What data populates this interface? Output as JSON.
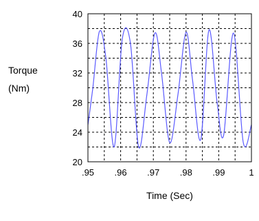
{
  "chart_data": {
    "type": "line",
    "title": "",
    "xlabel": "Time (Sec)",
    "ylabel": [
      "Torque",
      "(Nm)"
    ],
    "xlim": [
      0.95,
      1.0
    ],
    "ylim": [
      20,
      40
    ],
    "x_ticks": [
      0.95,
      0.96,
      0.97,
      0.98,
      0.99,
      1.0
    ],
    "x_tick_labels": [
      ".95",
      ".96",
      ".97",
      ".98",
      ".99",
      "1"
    ],
    "y_ticks": [
      20,
      24,
      28,
      32,
      36,
      40
    ],
    "y_tick_labels": [
      "20",
      "24",
      "28",
      "32",
      "36",
      "40"
    ],
    "grid": true,
    "grid_style": "dashed",
    "frame_color": "#000000",
    "grid_color": "#000000",
    "series": [
      {
        "color": "#5a5aff",
        "x": [
          0.95,
          0.9515,
          0.9535,
          0.9555,
          0.958,
          0.9605,
          0.963,
          0.9655,
          0.968,
          0.9705,
          0.9725,
          0.975,
          0.9775,
          0.98,
          0.982,
          0.9845,
          0.987,
          0.9895,
          0.9915,
          0.9945,
          0.9975,
          1.0
        ],
        "values": [
          25.0,
          30.0,
          37.6,
          34.0,
          22.0,
          36.6,
          36.0,
          22.0,
          29.0,
          37.4,
          32.0,
          22.6,
          29.0,
          37.5,
          31.0,
          23.0,
          37.8,
          28.0,
          23.6,
          37.4,
          22.6,
          25.0
        ]
      }
    ]
  }
}
